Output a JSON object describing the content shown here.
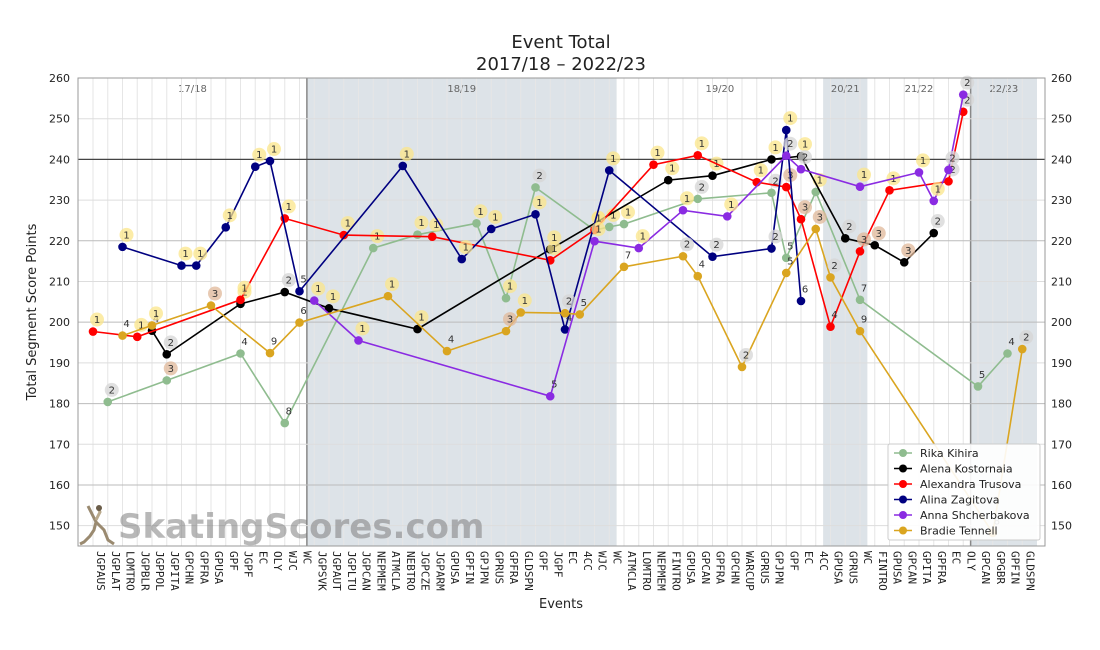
{
  "chart_data": {
    "type": "line",
    "title": "Event Total",
    "subtitle": "2017/18 – 2022/23",
    "xlabel": "Events",
    "ylabel": "Total Segment Score Points",
    "ylim": [
      145,
      260
    ],
    "yticks_major": [
      150,
      160,
      170,
      180,
      190,
      200,
      210,
      220,
      230,
      240,
      250,
      260
    ],
    "yticks_left": [
      160,
      180,
      200,
      220,
      240,
      260
    ],
    "grid": true,
    "legend_position": "lower-right",
    "watermark": "SkatingScores.com",
    "categories": [
      "JGPAUS",
      "JGPLAT",
      "LOMTRO",
      "JGPBLR",
      "JGPPOL",
      "JGPITA",
      "GPCHN",
      "GPFRA",
      "GPUSA",
      "GPF",
      "JGPF",
      "EC",
      "OLY",
      "WJC",
      "WC",
      "JGPSVK",
      "JGPAUT",
      "JGPLTU",
      "JGPCAN",
      "NEPMEM",
      "ATMCLA",
      "NEBTRO",
      "JGPCZE",
      "JGPARM",
      "GPUSA",
      "GPFIN",
      "GPJPN",
      "GPRUS",
      "GPFRA",
      "GLDSPN",
      "GPF",
      "JGPF",
      "EC",
      "4CC",
      "WJC",
      "WC",
      "ATMCLA",
      "LOMTRO",
      "NEPMEM",
      "FINTRO",
      "GPUSA",
      "GPCAN",
      "GPFRA",
      "GPCHN",
      "WARCUP",
      "GPRUS",
      "GPJPN",
      "GPF",
      "EC",
      "4CC",
      "GPUSA",
      "GPRUS",
      "WC",
      "FINTRO",
      "GPUSA",
      "GPCAN",
      "GPITA",
      "GPFRA",
      "EC",
      "OLY",
      "GPCAN",
      "GPGBR",
      "GPFIN",
      "GLDSPN"
    ],
    "seasons": [
      {
        "label": "17/18",
        "shaded": false
      },
      {
        "label": "18/19",
        "shaded": true
      },
      {
        "label": "19/20",
        "shaded": false
      },
      {
        "label": "20/21",
        "shaded": true
      },
      {
        "label": "21/22",
        "shaded": false
      },
      {
        "label": "22/23",
        "shaded": true
      }
    ],
    "series": [
      {
        "name": "Rika Kihira",
        "color": "#8fbc8f",
        "points": [
          {
            "i": 1,
            "y": 180.4,
            "r": "2"
          },
          {
            "i": 5,
            "y": 185.7,
            "r": "3"
          },
          {
            "i": 10,
            "y": 192.3,
            "r": "4"
          },
          {
            "i": 13,
            "y": 175.2,
            "r": "8"
          },
          {
            "i": 19,
            "y": 218.2,
            "r": "1"
          },
          {
            "i": 22,
            "y": 221.5,
            "r": "1"
          },
          {
            "i": 26,
            "y": 224.3,
            "r": "1"
          },
          {
            "i": 28,
            "y": 205.9,
            "r": "1"
          },
          {
            "i": 30,
            "y": 233.1,
            "r": "2"
          },
          {
            "i": 34,
            "y": 222.6,
            "r": "1"
          },
          {
            "i": 35,
            "y": 223.4,
            "r": "1"
          },
          {
            "i": 36,
            "y": 224.1,
            "r": "1"
          },
          {
            "i": 41,
            "y": 230.3,
            "r": "2"
          },
          {
            "i": 46,
            "y": 231.8,
            "r": "2"
          },
          {
            "i": 47,
            "y": 215.8,
            "r": "5"
          },
          {
            "i": 49,
            "y": 232.0,
            "r": "1"
          },
          {
            "i": 52,
            "y": 205.5,
            "r": "7"
          },
          {
            "i": 60,
            "y": 184.2,
            "r": "5"
          },
          {
            "i": 62,
            "y": 192.3,
            "r": "4"
          }
        ]
      },
      {
        "name": "Alena Kostornaia",
        "color": "#000000",
        "points": [
          {
            "i": 4,
            "y": 197.9,
            "r": "4"
          },
          {
            "i": 5,
            "y": 192.1,
            "r": "2"
          },
          {
            "i": 10,
            "y": 204.5,
            "r": "1"
          },
          {
            "i": 13,
            "y": 207.4,
            "r": "2"
          },
          {
            "i": 16,
            "y": 203.4,
            "r": "1"
          },
          {
            "i": 22,
            "y": 198.3,
            "r": "1"
          },
          {
            "i": 31,
            "y": 217.9,
            "r": "1"
          },
          {
            "i": 39,
            "y": 234.9,
            "r": "1"
          },
          {
            "i": 42,
            "y": 236.0,
            "r": "1"
          },
          {
            "i": 46,
            "y": 240.0,
            "r": "1"
          },
          {
            "i": 48,
            "y": 240.8,
            "r": "1"
          },
          {
            "i": 51,
            "y": 220.6,
            "r": "2"
          },
          {
            "i": 53,
            "y": 218.9,
            "r": "3"
          },
          {
            "i": 55,
            "y": 214.7,
            "r": "3"
          },
          {
            "i": 57,
            "y": 221.9,
            "r": "2"
          }
        ]
      },
      {
        "name": "Alexandra Trusova",
        "color": "#ff0000",
        "points": [
          {
            "i": 0,
            "y": 197.7,
            "r": "1"
          },
          {
            "i": 3,
            "y": 196.4,
            "r": "1"
          },
          {
            "i": 10,
            "y": 205.5,
            "r": "1"
          },
          {
            "i": 13,
            "y": 225.5,
            "r": "1"
          },
          {
            "i": 17,
            "y": 221.4,
            "r": "1"
          },
          {
            "i": 23,
            "y": 221.0,
            "r": "1"
          },
          {
            "i": 31,
            "y": 215.2,
            "r": "1"
          },
          {
            "i": 34,
            "y": 222.7,
            "r": "1"
          },
          {
            "i": 38,
            "y": 238.7,
            "r": "1"
          },
          {
            "i": 41,
            "y": 241.0,
            "r": "1"
          },
          {
            "i": 45,
            "y": 234.4,
            "r": "1"
          },
          {
            "i": 47,
            "y": 233.2,
            "r": "3"
          },
          {
            "i": 48,
            "y": 225.3,
            "r": "3"
          },
          {
            "i": 50,
            "y": 198.9,
            "r": "4"
          },
          {
            "i": 52,
            "y": 217.4,
            "r": "3"
          },
          {
            "i": 54,
            "y": 232.4,
            "r": "1"
          },
          {
            "i": 58,
            "y": 234.6,
            "r": "2"
          },
          {
            "i": 59,
            "y": 251.7,
            "r": "2"
          }
        ]
      },
      {
        "name": "Alina Zagitova",
        "color": "#000080",
        "points": [
          {
            "i": 2,
            "y": 218.5,
            "r": "1"
          },
          {
            "i": 6,
            "y": 213.9,
            "r": "1"
          },
          {
            "i": 7,
            "y": 213.9,
            "r": "1"
          },
          {
            "i": 9,
            "y": 223.3,
            "r": "1"
          },
          {
            "i": 11,
            "y": 238.2,
            "r": "1"
          },
          {
            "i": 12,
            "y": 239.6,
            "r": "1"
          },
          {
            "i": 14,
            "y": 207.6,
            "r": "5"
          },
          {
            "i": 21,
            "y": 238.4,
            "r": "1"
          },
          {
            "i": 25,
            "y": 215.5,
            "r": "1"
          },
          {
            "i": 27,
            "y": 222.9,
            "r": "1"
          },
          {
            "i": 30,
            "y": 226.5,
            "r": "1"
          },
          {
            "i": 32,
            "y": 198.2,
            "r": "4"
          },
          {
            "i": 35,
            "y": 237.3,
            "r": "1"
          },
          {
            "i": 42,
            "y": 216.1,
            "r": "2"
          },
          {
            "i": 46,
            "y": 218.1,
            "r": "2"
          },
          {
            "i": 47,
            "y": 247.2,
            "r": "1"
          },
          {
            "i": 48,
            "y": 205.2,
            "r": "6"
          }
        ]
      },
      {
        "name": "Anna Shcherbakova",
        "color": "#8a2be2",
        "points": [
          {
            "i": 15,
            "y": 205.3,
            "r": "1"
          },
          {
            "i": 18,
            "y": 195.5,
            "r": "1"
          },
          {
            "i": 31,
            "y": 181.8,
            "r": "5"
          },
          {
            "i": 34,
            "y": 219.9,
            "r": "1"
          },
          {
            "i": 37,
            "y": 218.2,
            "r": "1"
          },
          {
            "i": 40,
            "y": 227.5,
            "r": "1"
          },
          {
            "i": 43,
            "y": 226.0,
            "r": "1"
          },
          {
            "i": 47,
            "y": 240.9,
            "r": "2"
          },
          {
            "i": 48,
            "y": 237.6,
            "r": "2"
          },
          {
            "i": 52,
            "y": 233.3,
            "r": "1"
          },
          {
            "i": 56,
            "y": 236.8,
            "r": "1"
          },
          {
            "i": 57,
            "y": 229.8,
            "r": "1"
          },
          {
            "i": 58,
            "y": 237.4,
            "r": "2"
          },
          {
            "i": 59,
            "y": 255.9,
            "r": "2"
          }
        ]
      },
      {
        "name": "Bradie Tennell",
        "color": "#daa520",
        "points": [
          {
            "i": 2,
            "y": 196.7,
            "r": "4"
          },
          {
            "i": 4,
            "y": 199.2,
            "r": "1"
          },
          {
            "i": 8,
            "y": 204.1,
            "r": "3"
          },
          {
            "i": 12,
            "y": 192.4,
            "r": "9"
          },
          {
            "i": 14,
            "y": 199.9,
            "r": "6"
          },
          {
            "i": 20,
            "y": 206.4,
            "r": "1"
          },
          {
            "i": 24,
            "y": 192.9,
            "r": "4"
          },
          {
            "i": 28,
            "y": 197.8,
            "r": "3"
          },
          {
            "i": 29,
            "y": 202.4,
            "r": "1"
          },
          {
            "i": 32,
            "y": 202.2,
            "r": "2"
          },
          {
            "i": 33,
            "y": 201.9,
            "r": "5"
          },
          {
            "i": 36,
            "y": 213.6,
            "r": "7"
          },
          {
            "i": 40,
            "y": 216.2,
            "r": "2"
          },
          {
            "i": 41,
            "y": 211.3,
            "r": "4"
          },
          {
            "i": 44,
            "y": 189.0,
            "r": "2"
          },
          {
            "i": 47,
            "y": 212.1,
            "r": "5"
          },
          {
            "i": 49,
            "y": 222.9,
            "r": "3"
          },
          {
            "i": 50,
            "y": 211.0,
            "r": "2"
          },
          {
            "i": 52,
            "y": 197.8,
            "r": "9"
          },
          {
            "i": 61,
            "y": 148.2,
            "r": "8"
          },
          {
            "i": 63,
            "y": 193.4,
            "r": "2"
          }
        ]
      }
    ]
  }
}
